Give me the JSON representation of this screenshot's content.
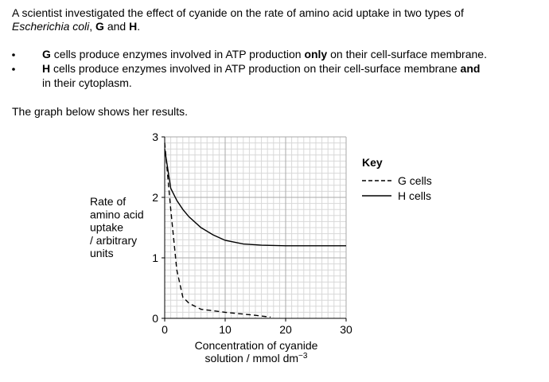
{
  "intro": {
    "line1": "A scientist investigated the effect of cyanide on the rate of amino acid uptake in two types of",
    "line2": [
      "Escherichia coli",
      ", ",
      "G",
      " and ",
      "H",
      "."
    ]
  },
  "bullets": [
    [
      "G",
      " cells produce enzymes involved in ATP production ",
      "only",
      " on their cell-surface membrane."
    ],
    [
      "H",
      " cells produce enzymes involved in ATP production on their cell-surface membrane ",
      "and",
      "in their cytoplasm."
    ]
  ],
  "lead": "The graph below shows her results.",
  "chart_data": {
    "type": "line",
    "ylabel": [
      "Rate of",
      "amino acid",
      "uptake",
      "/ arbitrary",
      "units"
    ],
    "xlabel": [
      "Concentration of cyanide",
      "solution / mmol dm",
      "−3"
    ],
    "legend_title": "Key",
    "series": [
      {
        "name": "G cells",
        "color": "#000000",
        "style": "dashed",
        "x": [
          0,
          1,
          2,
          3,
          4,
          6,
          10,
          15,
          17.5
        ],
        "values": [
          2.9,
          1.8,
          0.8,
          0.35,
          0.25,
          0.15,
          0.1,
          0.05,
          0.02
        ]
      },
      {
        "name": "H cells",
        "color": "#000000",
        "style": "solid",
        "x": [
          0,
          1,
          2,
          3,
          4,
          6,
          8,
          10,
          13,
          16,
          20,
          30
        ],
        "values": [
          2.8,
          2.15,
          1.95,
          1.8,
          1.68,
          1.5,
          1.38,
          1.29,
          1.23,
          1.21,
          1.2,
          1.2
        ]
      }
    ],
    "xlim": [
      0,
      30
    ],
    "ylim": [
      0,
      3
    ],
    "xticks": [
      0,
      10,
      20,
      30
    ],
    "yticks": [
      0,
      1,
      2,
      3
    ],
    "grid": true
  }
}
